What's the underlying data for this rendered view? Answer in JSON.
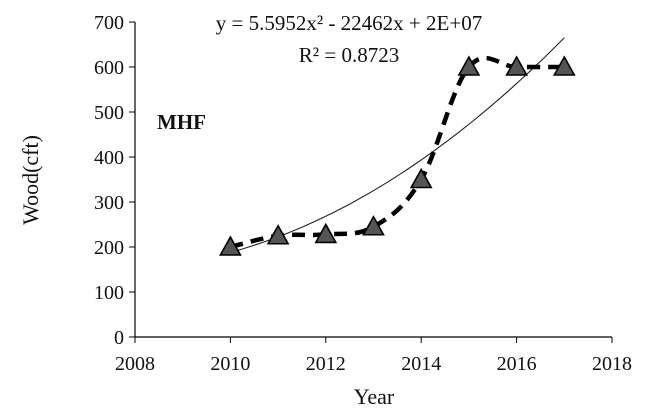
{
  "chart_data": {
    "type": "scatter",
    "xlabel": "Year",
    "ylabel": "Wood(cft)",
    "xlim": [
      2008,
      2018
    ],
    "ylim": [
      0,
      700
    ],
    "x_ticks": [
      2008,
      2010,
      2012,
      2014,
      2016,
      2018
    ],
    "y_ticks": [
      0,
      100,
      200,
      300,
      400,
      500,
      600,
      700
    ],
    "grid": false,
    "panel_label": "MHF",
    "trendline_equation": "y = 5.5952x² - 22462x + 2E+07",
    "trendline_r2": "R² = 0.8723",
    "trendline": {
      "type": "polynomial",
      "order": 2,
      "x_range": [
        2010,
        2017
      ],
      "values_at_ends": [
        188,
        665
      ]
    },
    "series": [
      {
        "marker": "triangle",
        "line_style": "dashed",
        "x": [
          2010,
          2011,
          2012,
          2013,
          2014,
          2015,
          2016,
          2017
        ],
        "y": [
          200,
          225,
          228,
          245,
          350,
          600,
          600,
          600
        ]
      }
    ],
    "colors": {
      "axis": "#000000",
      "marker_fill": "#555555",
      "line": "#000000"
    }
  }
}
